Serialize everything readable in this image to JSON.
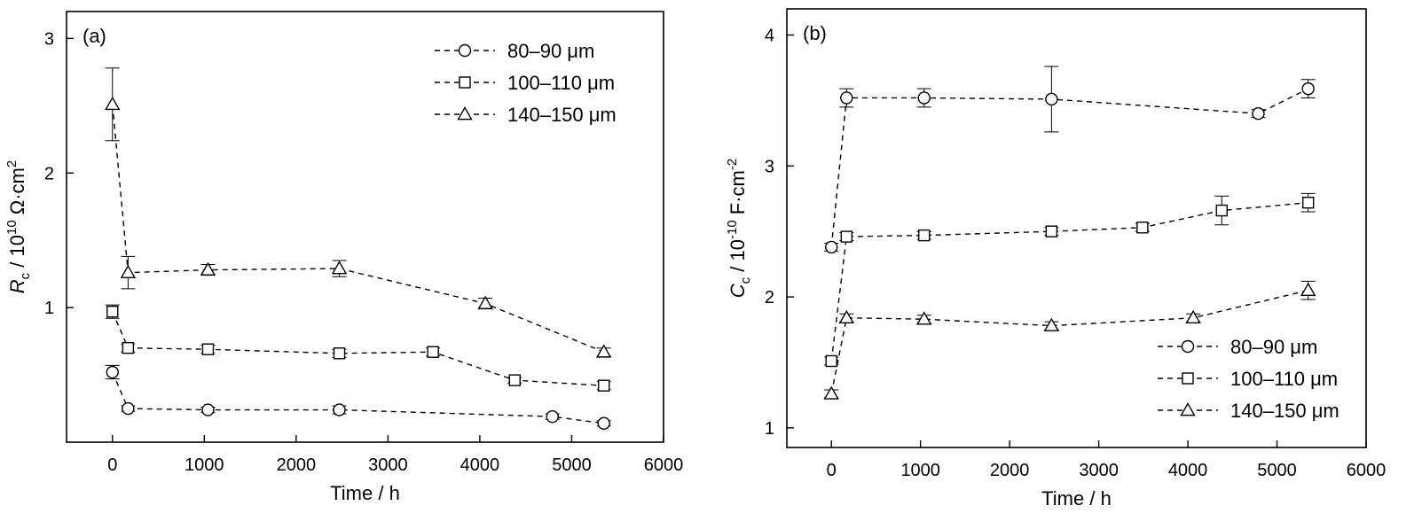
{
  "chart_data": [
    {
      "type": "line",
      "panel_label": "(a)",
      "xlabel": "Time / h",
      "ylabel": {
        "symbol": "R",
        "subscript": "c",
        "rest": " / 10",
        "superscript": "10",
        "unit": " Ω·cm",
        "unit_sup": "2"
      },
      "xlim": [
        -500,
        6000
      ],
      "ylim": [
        0,
        3.2
      ],
      "xticks": [
        0,
        1000,
        2000,
        3000,
        4000,
        5000,
        6000
      ],
      "xtick_labels": [
        "0",
        "1000",
        "2000",
        "3000",
        "4000",
        "5000",
        "6000"
      ],
      "yticks": [
        1,
        2,
        3
      ],
      "ytick_labels": [
        "1",
        "2",
        "3"
      ],
      "legend_position": "top-right",
      "grid": false,
      "series": [
        {
          "name": "80–90 μm",
          "marker": "circle",
          "x": [
            0,
            170,
            1040,
            2470,
            4790,
            5350
          ],
          "y": [
            0.52,
            0.25,
            0.24,
            0.24,
            0.19,
            0.14
          ],
          "err": [
            0.05,
            0.02,
            0.02,
            0.03,
            0.02,
            0.02
          ]
        },
        {
          "name": "100–110 μm",
          "marker": "square",
          "x": [
            0,
            170,
            1040,
            2470,
            3490,
            4380,
            5350
          ],
          "y": [
            0.97,
            0.7,
            0.69,
            0.66,
            0.67,
            0.46,
            0.42
          ],
          "err": [
            0.05,
            0.03,
            0.03,
            0.03,
            0.03,
            0.02,
            0.03
          ]
        },
        {
          "name": "140–150 μm",
          "marker": "triangle",
          "x": [
            0,
            170,
            1040,
            2470,
            4060,
            5350
          ],
          "y": [
            2.51,
            1.26,
            1.28,
            1.29,
            1.03,
            0.67
          ],
          "err": [
            0.27,
            0.12,
            0.04,
            0.06,
            0.04,
            0.03
          ]
        }
      ]
    },
    {
      "type": "line",
      "panel_label": "(b)",
      "xlabel": "Time / h",
      "ylabel": {
        "symbol": "C",
        "subscript": "c",
        "rest": " / 10",
        "superscript": "-10",
        "unit": " F·cm",
        "unit_sup": "-2"
      },
      "xlim": [
        -500,
        6000
      ],
      "ylim": [
        0.85,
        4.2
      ],
      "xticks": [
        0,
        1000,
        2000,
        3000,
        4000,
        5000,
        6000
      ],
      "xtick_labels": [
        "0",
        "1000",
        "2000",
        "3000",
        "4000",
        "5000",
        "6000"
      ],
      "yticks": [
        1,
        2,
        3,
        4
      ],
      "ytick_labels": [
        "1",
        "2",
        "3",
        "4"
      ],
      "legend_position": "bottom-right",
      "grid": false,
      "series": [
        {
          "name": "80–90 μm",
          "marker": "circle",
          "x": [
            0,
            170,
            1040,
            2470,
            4790,
            5350
          ],
          "y": [
            2.38,
            3.52,
            3.52,
            3.51,
            3.4,
            3.59
          ],
          "err": [
            0.03,
            0.07,
            0.07,
            0.25,
            0.03,
            0.07
          ]
        },
        {
          "name": "100–110 μm",
          "marker": "square",
          "x": [
            0,
            170,
            1040,
            2470,
            3490,
            4380,
            5350
          ],
          "y": [
            1.51,
            2.46,
            2.47,
            2.5,
            2.53,
            2.66,
            2.72
          ],
          "err": [
            0.03,
            0.03,
            0.03,
            0.03,
            0.03,
            0.11,
            0.07
          ]
        },
        {
          "name": "140–150 μm",
          "marker": "triangle",
          "x": [
            0,
            170,
            1040,
            2470,
            4060,
            5350
          ],
          "y": [
            1.26,
            1.84,
            1.83,
            1.78,
            1.84,
            2.05
          ],
          "err": [
            0.03,
            0.03,
            0.03,
            0.03,
            0.03,
            0.07
          ]
        }
      ]
    }
  ]
}
